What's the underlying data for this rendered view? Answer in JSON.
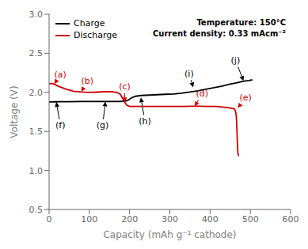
{
  "chart_data": {
    "type": "line",
    "xlabel": "Capacity (mAh g⁻¹ cathode)",
    "ylabel": "Voltage (V)",
    "xlim": [
      0,
      600
    ],
    "ylim": [
      0.5,
      3.0
    ],
    "xticks": [
      0,
      100,
      200,
      300,
      400,
      500,
      600
    ],
    "yticks": [
      0.5,
      {
        "value": 1.0,
        "label": "1.0"
      },
      1.5,
      {
        "value": 2.0,
        "label": "2.0"
      },
      2.5,
      {
        "value": 3.0,
        "label": "3.0"
      }
    ],
    "legend": "upper left",
    "annotations": [
      "Temperature: 150°C",
      "Current density: 0.33 mAcm⁻²"
    ],
    "series": [
      {
        "name": "Charge",
        "color": "#000000",
        "x": [
          0,
          5,
          15,
          30,
          50,
          80,
          110,
          140,
          160,
          175,
          185,
          192,
          198,
          205,
          215,
          230,
          250,
          270,
          290,
          310,
          330,
          350,
          370,
          390,
          410,
          430,
          450,
          465,
          478,
          488,
          497,
          505
        ],
        "values": [
          1.875,
          1.877,
          1.879,
          1.88,
          1.881,
          1.882,
          1.882,
          1.883,
          1.883,
          1.884,
          1.886,
          1.89,
          1.905,
          1.93,
          1.95,
          1.96,
          1.965,
          1.97,
          1.975,
          1.98,
          1.99,
          2.005,
          2.02,
          2.04,
          2.06,
          2.08,
          2.105,
          2.12,
          2.135,
          2.145,
          2.152,
          2.16
        ]
      },
      {
        "name": "Discharge",
        "color": "#cc0000",
        "x": [
          0,
          5,
          12,
          25,
          40,
          60,
          80,
          100,
          120,
          140,
          155,
          168,
          177,
          183,
          188,
          193,
          200,
          215,
          235,
          255,
          280,
          305,
          330,
          355,
          375,
          395,
          415,
          435,
          450,
          460,
          462,
          464,
          465,
          466,
          467,
          468,
          469,
          469.5,
          470,
          470.5,
          471
        ],
        "values": [
          2.105,
          2.115,
          2.105,
          2.075,
          2.045,
          2.015,
          2.005,
          2.0,
          2.003,
          2.008,
          2.008,
          2.0,
          1.975,
          1.92,
          1.87,
          1.835,
          1.82,
          1.82,
          1.82,
          1.82,
          1.82,
          1.82,
          1.82,
          1.822,
          1.822,
          1.82,
          1.82,
          1.81,
          1.8,
          1.79,
          1.77,
          1.74,
          1.7,
          1.62,
          1.48,
          1.33,
          1.23,
          1.21,
          1.2,
          1.195,
          1.2
        ]
      }
    ],
    "arrow_annotations": [
      {
        "text": "(a)",
        "x": 28,
        "y": 2.225,
        "arrow_x": 13,
        "arrow_y": 2.108,
        "color": "#cc0000"
      },
      {
        "text": "(b)",
        "x": 95,
        "y": 2.14,
        "arrow_x": 80,
        "arrow_y": 2.008,
        "color": "#cc0000"
      },
      {
        "text": "(c)",
        "x": 188,
        "y": 2.07,
        "arrow_x": 188,
        "arrow_y": 1.875,
        "color": "#cc0000"
      },
      {
        "text": "(d)",
        "x": 380,
        "y": 1.985,
        "arrow_x": 362,
        "arrow_y": 1.822,
        "color": "#cc0000"
      },
      {
        "text": "(e)",
        "x": 488,
        "y": 1.93,
        "arrow_x": 469,
        "arrow_y": 1.8,
        "color": "#cc0000"
      },
      {
        "text": "(f)",
        "x": 28,
        "y": 1.575,
        "arrow_x": 18,
        "arrow_y": 1.876,
        "color": "#000000"
      },
      {
        "text": "(g)",
        "x": 133,
        "y": 1.575,
        "arrow_x": 140,
        "arrow_y": 1.882,
        "color": "#000000"
      },
      {
        "text": "(h)",
        "x": 238,
        "y": 1.63,
        "arrow_x": 228,
        "arrow_y": 1.935,
        "color": "#000000"
      },
      {
        "text": "(i)",
        "x": 348,
        "y": 2.24,
        "arrow_x": 358,
        "arrow_y": 2.065,
        "color": "#000000"
      },
      {
        "text": "(j)",
        "x": 463,
        "y": 2.41,
        "arrow_x": 483,
        "arrow_y": 2.148,
        "color": "#000000"
      }
    ]
  }
}
